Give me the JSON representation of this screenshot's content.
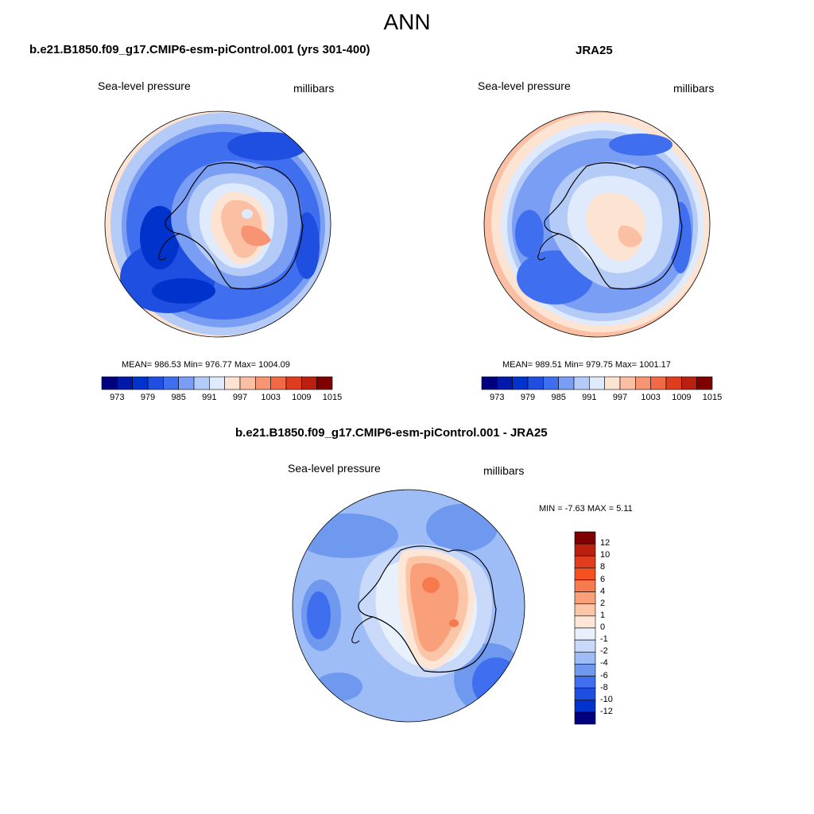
{
  "main_title": "ANN",
  "panels": [
    {
      "title": "b.e21.B1850.f09_g17.CMIP6-esm-piControl.001 (yrs 301-400)",
      "variable": "Sea-level pressure",
      "units": "millibars",
      "stats": "MEAN= 986.53  Min= 976.77  Max= 1004.09"
    },
    {
      "title": "JRA25",
      "variable": "Sea-level pressure",
      "units": "millibars",
      "stats": "MEAN= 989.51  Min= 979.75  Max= 1001.17"
    },
    {
      "title": "b.e21.B1850.f09_g17.CMIP6-esm-piControl.001 - JRA25",
      "variable": "Sea-level pressure",
      "units": "millibars",
      "stats": "MIN =  -7.63 MAX =   5.11"
    }
  ],
  "colorbar_abs": {
    "ticks": [
      "973",
      "979",
      "985",
      "991",
      "997",
      "1003",
      "1009",
      "1015"
    ],
    "colors": [
      "#00007f",
      "#0019a8",
      "#0033cc",
      "#1f4fe0",
      "#3f6fee",
      "#7a9ef4",
      "#b4cbf8",
      "#dfeafc",
      "#fde3d2",
      "#fbbfa4",
      "#f79474",
      "#f26a45",
      "#e03d1f",
      "#b9200f",
      "#7f0000"
    ]
  },
  "colorbar_diff": {
    "ticks": [
      "12",
      "10",
      "8",
      "6",
      "4",
      "2",
      "1",
      "0",
      "-1",
      "-2",
      "-4",
      "-6",
      "-8",
      "-10",
      "-12"
    ],
    "colors": [
      "#7f0000",
      "#b9200f",
      "#e03d1f",
      "#f5501f",
      "#f77a4f",
      "#f9a07a",
      "#fbc6a8",
      "#fde6d6",
      "#e8f0fc",
      "#c8d9fa",
      "#9ebcf6",
      "#6f98ef",
      "#3f6fee",
      "#1f4fe0",
      "#0033cc",
      "#00007f"
    ]
  }
}
